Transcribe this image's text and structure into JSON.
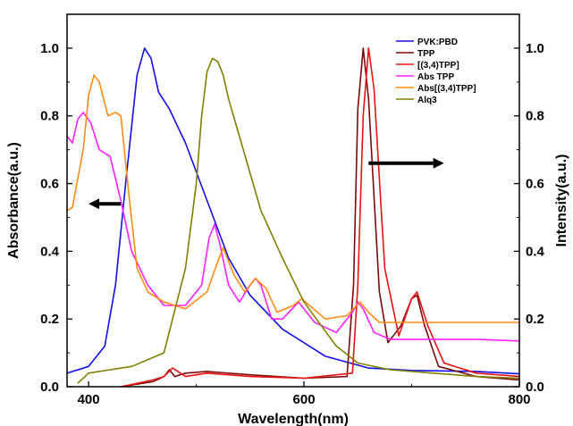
{
  "chart_data": {
    "type": "line",
    "xlabel": "Wavelength(nm)",
    "ylabel_left": "Absorbance(a.u.)",
    "ylabel_right": "Intensity(a.u.)",
    "xlim": [
      380,
      800
    ],
    "ylim_left": [
      0,
      1.1
    ],
    "ylim_right": [
      0,
      1.1
    ],
    "x_ticks": [
      "400",
      "600",
      "800"
    ],
    "x_tick_values": [
      400,
      600,
      800
    ],
    "y_ticks": [
      "0.0",
      "0.2",
      "0.4",
      "0.6",
      "0.8",
      "1.0"
    ],
    "y_tick_values": [
      0,
      0.2,
      0.4,
      0.6,
      0.8,
      1.0
    ],
    "legend_position": "top-right",
    "arrows": [
      {
        "direction": "left",
        "from": [
          430,
          0.54
        ],
        "to": [
          400,
          0.54
        ]
      },
      {
        "direction": "right",
        "from": [
          660,
          0.66
        ],
        "to": [
          730,
          0.66
        ]
      }
    ],
    "series": [
      {
        "name": "PVK:PBD",
        "color": "#1010ee",
        "x": [
          380,
          400,
          415,
          425,
          435,
          445,
          452,
          458,
          465,
          475,
          490,
          510,
          530,
          550,
          580,
          620,
          660,
          700,
          760,
          800
        ],
        "y": [
          0.04,
          0.06,
          0.12,
          0.3,
          0.62,
          0.92,
          1.0,
          0.97,
          0.87,
          0.82,
          0.72,
          0.55,
          0.38,
          0.27,
          0.17,
          0.09,
          0.055,
          0.048,
          0.045,
          0.038
        ]
      },
      {
        "name": "TPP",
        "color": "#7a0a0a",
        "x": [
          430,
          460,
          470,
          475,
          480,
          490,
          510,
          550,
          600,
          640,
          646,
          650,
          655,
          660,
          670,
          678,
          690,
          700,
          705,
          712,
          725,
          760,
          800
        ],
        "y": [
          0.0,
          0.015,
          0.03,
          0.05,
          0.03,
          0.04,
          0.045,
          0.035,
          0.025,
          0.03,
          0.3,
          0.82,
          1.0,
          0.85,
          0.28,
          0.13,
          0.18,
          0.26,
          0.27,
          0.18,
          0.06,
          0.03,
          0.02
        ]
      },
      {
        "name": "[(3,4)TPP]",
        "color": "#ee1010",
        "x": [
          430,
          460,
          470,
          478,
          490,
          510,
          550,
          600,
          645,
          650,
          655,
          660,
          665,
          675,
          688,
          700,
          705,
          715,
          730,
          760,
          800
        ],
        "y": [
          0.0,
          0.02,
          0.03,
          0.055,
          0.03,
          0.04,
          0.03,
          0.025,
          0.04,
          0.3,
          0.8,
          1.0,
          0.88,
          0.35,
          0.15,
          0.26,
          0.28,
          0.18,
          0.07,
          0.04,
          0.03
        ]
      },
      {
        "name": "Abs TPP",
        "color": "#ff20ff",
        "x": [
          380,
          385,
          390,
          395,
          402,
          410,
          420,
          430,
          440,
          455,
          470,
          490,
          505,
          512,
          517,
          522,
          530,
          540,
          550,
          555,
          560,
          570,
          580,
          595,
          610,
          630,
          645,
          650,
          655,
          665,
          680,
          720,
          760,
          800
        ],
        "y": [
          0.74,
          0.72,
          0.79,
          0.81,
          0.78,
          0.7,
          0.68,
          0.55,
          0.4,
          0.3,
          0.24,
          0.24,
          0.3,
          0.44,
          0.48,
          0.42,
          0.3,
          0.25,
          0.3,
          0.32,
          0.3,
          0.2,
          0.2,
          0.25,
          0.19,
          0.16,
          0.22,
          0.25,
          0.23,
          0.16,
          0.14,
          0.14,
          0.14,
          0.135
        ]
      },
      {
        "name": "Abs[(3,4)TPP]",
        "color": "#ff8c10",
        "x": [
          380,
          385,
          395,
          400,
          405,
          410,
          418,
          425,
          430,
          438,
          445,
          455,
          470,
          490,
          510,
          520,
          525,
          535,
          545,
          555,
          565,
          575,
          590,
          598,
          605,
          620,
          640,
          652,
          660,
          670,
          700,
          760,
          800
        ],
        "y": [
          0.52,
          0.53,
          0.7,
          0.86,
          0.92,
          0.9,
          0.8,
          0.81,
          0.8,
          0.55,
          0.35,
          0.28,
          0.25,
          0.23,
          0.28,
          0.37,
          0.41,
          0.33,
          0.28,
          0.32,
          0.29,
          0.22,
          0.24,
          0.26,
          0.24,
          0.2,
          0.21,
          0.25,
          0.22,
          0.19,
          0.19,
          0.19,
          0.19
        ]
      },
      {
        "name": "Alq3",
        "color": "#808000",
        "x": [
          390,
          400,
          420,
          440,
          470,
          490,
          500,
          505,
          510,
          515,
          520,
          525,
          530,
          540,
          560,
          580,
          600,
          630,
          650,
          680,
          720,
          760,
          800
        ],
        "y": [
          0.01,
          0.04,
          0.05,
          0.06,
          0.1,
          0.35,
          0.6,
          0.8,
          0.93,
          0.97,
          0.96,
          0.92,
          0.85,
          0.74,
          0.52,
          0.38,
          0.25,
          0.12,
          0.07,
          0.05,
          0.04,
          0.03,
          0.025
        ]
      }
    ]
  }
}
